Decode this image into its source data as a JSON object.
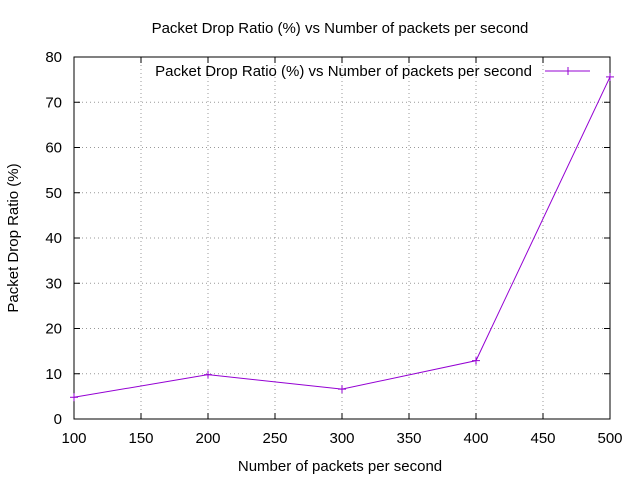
{
  "chart_data": {
    "type": "line",
    "title": "Packet Drop Ratio (%) vs Number of packets per second",
    "xlabel": "Number of packets per second",
    "ylabel": "Packet Drop Ratio (%)",
    "xlim": [
      100,
      500
    ],
    "ylim": [
      0,
      80
    ],
    "x_ticks": [
      "100",
      "150",
      "200",
      "250",
      "300",
      "350",
      "400",
      "450",
      "500"
    ],
    "y_ticks": [
      "0",
      "10",
      "20",
      "30",
      "40",
      "50",
      "60",
      "70",
      "80"
    ],
    "grid": true,
    "legend_position": "top-right",
    "series": [
      {
        "name": "Packet Drop Ratio (%) vs Number of packets per second",
        "color": "#9400D3",
        "marker": "plus",
        "x": [
          100,
          200,
          300,
          400,
          500
        ],
        "y": [
          4.8,
          9.8,
          6.6,
          12.9,
          75.6
        ]
      }
    ]
  }
}
